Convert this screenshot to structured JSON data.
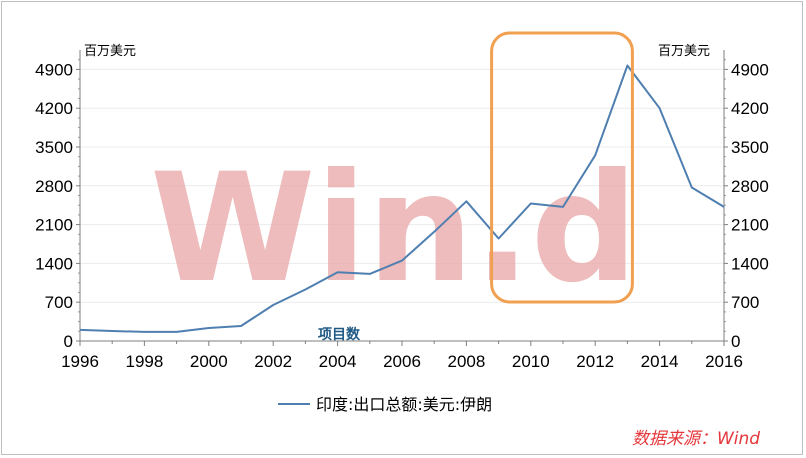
{
  "chart_data": {
    "type": "line",
    "left_axis_unit": "百万美元",
    "right_axis_unit": "百万美元",
    "x": [
      1996,
      1997,
      1998,
      1999,
      2000,
      2001,
      2002,
      2003,
      2004,
      2005,
      2006,
      2007,
      2008,
      2009,
      2010,
      2011,
      2012,
      2013,
      2014,
      2015,
      2016
    ],
    "x_ticks": [
      "1996",
      "1998",
      "2000",
      "2002",
      "2004",
      "2006",
      "2008",
      "2010",
      "2012",
      "2014",
      "2016"
    ],
    "y_ticks": [
      "0",
      "700",
      "1400",
      "2100",
      "2800",
      "3500",
      "4200",
      "4900"
    ],
    "ylim": [
      0,
      5250
    ],
    "xlim": [
      1996,
      2016
    ],
    "series": [
      {
        "name": "印度:出口总额:美元:伊朗",
        "color": "#4f7fb0",
        "values": [
          200,
          180,
          165,
          165,
          235,
          270,
          650,
          930,
          1240,
          1210,
          1450,
          1970,
          2520,
          1850,
          2480,
          2420,
          3350,
          4970,
          4200,
          2770,
          2420
        ]
      }
    ],
    "legend_position": "bottom",
    "grid": true,
    "highlight_box": {
      "x_range": [
        2009,
        2013
      ],
      "color": "#f0a050"
    },
    "annotation": "项目数",
    "watermark": "Win.d",
    "source": "数据来源：Wind"
  }
}
